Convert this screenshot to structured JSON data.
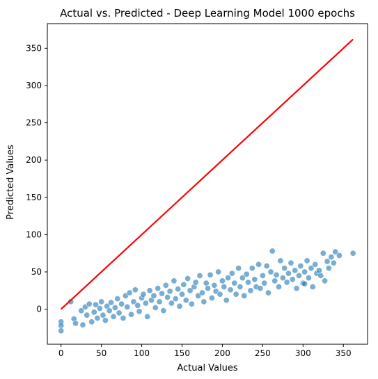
{
  "chart_data": {
    "type": "scatter",
    "title": "Actual vs. Predicted - Deep Learning Model 1000 epochs",
    "xlabel": "Actual Values",
    "ylabel": "Predicted Values",
    "xlim": [
      -17,
      380
    ],
    "ylim": [
      -47,
      383
    ],
    "xticks": [
      0,
      50,
      100,
      150,
      200,
      250,
      300,
      350
    ],
    "yticks": [
      0,
      50,
      100,
      150,
      200,
      250,
      300,
      350
    ],
    "grid": false,
    "legend": "none",
    "point_color": "#1f77b4",
    "line_color": "#ff0000",
    "reference_line": {
      "x": [
        0,
        362
      ],
      "y": [
        0,
        362
      ]
    },
    "series": [
      {
        "values": [
          [
            0,
            -17
          ],
          [
            0,
            -22
          ],
          [
            0,
            -29
          ],
          [
            12,
            10
          ],
          [
            16,
            -13
          ],
          [
            18,
            -19
          ],
          [
            25,
            -2
          ],
          [
            27,
            -21
          ],
          [
            30,
            3
          ],
          [
            32,
            -8
          ],
          [
            35,
            7
          ],
          [
            38,
            -17
          ],
          [
            41,
            -4
          ],
          [
            43,
            6
          ],
          [
            45,
            -12
          ],
          [
            48,
            1
          ],
          [
            50,
            10
          ],
          [
            52,
            -8
          ],
          [
            55,
            -15
          ],
          [
            57,
            4
          ],
          [
            60,
            -2
          ],
          [
            62,
            9
          ],
          [
            65,
            -10
          ],
          [
            67,
            2
          ],
          [
            70,
            14
          ],
          [
            72,
            -5
          ],
          [
            75,
            7
          ],
          [
            77,
            -12
          ],
          [
            80,
            18
          ],
          [
            82,
            3
          ],
          [
            85,
            22
          ],
          [
            87,
            -7
          ],
          [
            90,
            10
          ],
          [
            92,
            26
          ],
          [
            95,
            5
          ],
          [
            97,
            -3
          ],
          [
            100,
            15
          ],
          [
            102,
            20
          ],
          [
            105,
            8
          ],
          [
            107,
            -10
          ],
          [
            110,
            25
          ],
          [
            112,
            12
          ],
          [
            115,
            18
          ],
          [
            117,
            2
          ],
          [
            120,
            28
          ],
          [
            122,
            10
          ],
          [
            125,
            21
          ],
          [
            127,
            -2
          ],
          [
            130,
            32
          ],
          [
            132,
            16
          ],
          [
            135,
            24
          ],
          [
            137,
            8
          ],
          [
            140,
            38
          ],
          [
            142,
            14
          ],
          [
            145,
            27
          ],
          [
            147,
            4
          ],
          [
            150,
            20
          ],
          [
            152,
            33
          ],
          [
            155,
            12
          ],
          [
            157,
            41
          ],
          [
            160,
            25
          ],
          [
            162,
            7
          ],
          [
            165,
            30
          ],
          [
            167,
            36
          ],
          [
            170,
            18
          ],
          [
            172,
            45
          ],
          [
            175,
            22
          ],
          [
            177,
            10
          ],
          [
            180,
            35
          ],
          [
            182,
            28
          ],
          [
            185,
            46
          ],
          [
            187,
            15
          ],
          [
            190,
            32
          ],
          [
            192,
            24
          ],
          [
            195,
            50
          ],
          [
            197,
            20
          ],
          [
            200,
            38
          ],
          [
            202,
            30
          ],
          [
            205,
            12
          ],
          [
            207,
            42
          ],
          [
            210,
            26
          ],
          [
            212,
            48
          ],
          [
            215,
            35
          ],
          [
            217,
            20
          ],
          [
            220,
            55
          ],
          [
            222,
            30
          ],
          [
            225,
            42
          ],
          [
            227,
            18
          ],
          [
            230,
            47
          ],
          [
            232,
            36
          ],
          [
            235,
            25
          ],
          [
            237,
            55
          ],
          [
            240,
            40
          ],
          [
            242,
            30
          ],
          [
            245,
            60
          ],
          [
            247,
            28
          ],
          [
            250,
            45
          ],
          [
            252,
            35
          ],
          [
            255,
            58
          ],
          [
            257,
            22
          ],
          [
            260,
            50
          ],
          [
            262,
            78
          ],
          [
            265,
            38
          ],
          [
            267,
            46
          ],
          [
            270,
            30
          ],
          [
            272,
            65
          ],
          [
            275,
            42
          ],
          [
            277,
            55
          ],
          [
            280,
            36
          ],
          [
            282,
            48
          ],
          [
            285,
            62
          ],
          [
            287,
            40
          ],
          [
            290,
            52
          ],
          [
            292,
            28
          ],
          [
            295,
            45
          ],
          [
            297,
            58
          ],
          [
            300,
            35
          ],
          [
            302,
            50
          ],
          [
            305,
            65
          ],
          [
            307,
            42
          ],
          [
            310,
            55
          ],
          [
            312,
            30
          ],
          [
            315,
            60
          ],
          [
            317,
            48
          ],
          [
            320,
            52
          ],
          [
            322,
            45
          ],
          [
            325,
            75
          ],
          [
            327,
            38
          ],
          [
            330,
            64
          ],
          [
            332,
            55
          ],
          [
            335,
            70
          ],
          [
            338,
            62
          ],
          [
            340,
            77
          ],
          [
            345,
            72
          ],
          [
            362,
            75
          ],
          [
            302,
            34
          ]
        ]
      }
    ]
  }
}
